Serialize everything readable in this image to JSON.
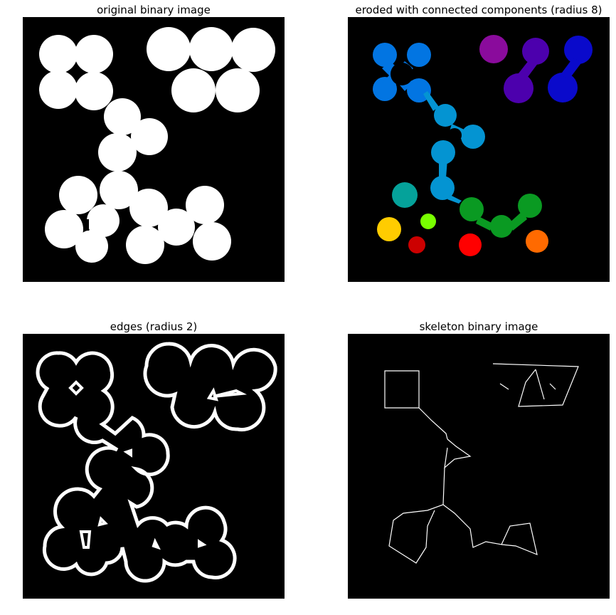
{
  "panels": [
    {
      "id": "original",
      "title": "original binary image",
      "bg": "#000000",
      "fg": "#ffffff"
    },
    {
      "id": "eroded",
      "title": "eroded with connected components (radius 8)",
      "bg": "#000000",
      "component_colors": [
        "#0275e2",
        "#8a0b9c",
        "#4c00ad",
        "#0a0acb",
        "#0494d2",
        "#05a29a",
        "#0a9a22",
        "#ffcc00",
        "#79ff00",
        "#cc0000",
        "#ff0000",
        "#ff6a00"
      ]
    },
    {
      "id": "edges",
      "title": "edges (radius 2)",
      "bg": "#000000",
      "fg": "#ffffff"
    },
    {
      "id": "skeleton",
      "title": "skeleton binary image",
      "bg": "#000000",
      "fg": "#ffffff"
    }
  ]
}
